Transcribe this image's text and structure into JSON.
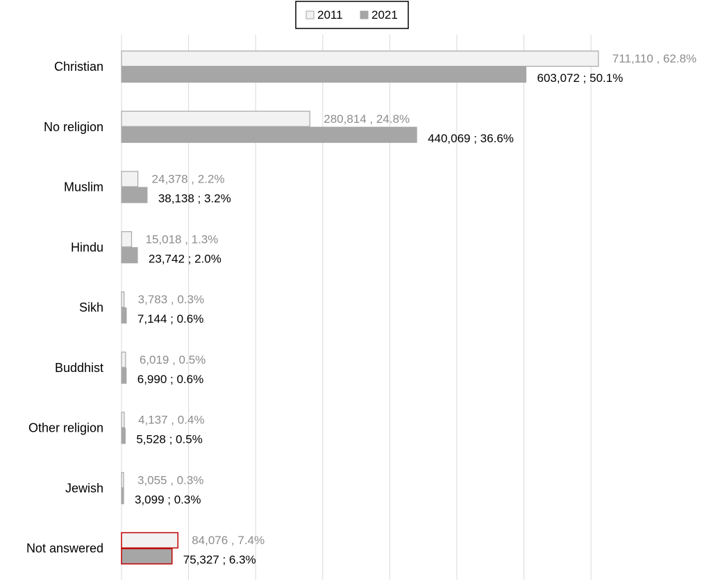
{
  "chart_data": {
    "type": "bar",
    "orientation": "horizontal",
    "categories": [
      "Christian",
      "No religion",
      "Muslim",
      "Hindu",
      "Sikh",
      "Buddhist",
      "Other religion",
      "Jewish",
      "Not answered"
    ],
    "series": [
      {
        "name": "2011",
        "values": [
          711110,
          280814,
          24378,
          15018,
          3783,
          6019,
          4137,
          3055,
          84076
        ],
        "labels": [
          "711,110 , 62.8%",
          "280,814 , 24.8%",
          "24,378 , 2.2%",
          "15,018 , 1.3%",
          "3,783 , 0.3%",
          "6,019 , 0.5%",
          "4,137 , 0.4%",
          "3,055 , 0.3%",
          "84,076 , 7.4%"
        ],
        "fill": "#f2f2f2",
        "stroke": "#a6a6a6",
        "label_color": "#8c8c8c"
      },
      {
        "name": "2021",
        "values": [
          603072,
          440069,
          38138,
          23742,
          7144,
          6990,
          5528,
          3099,
          75327
        ],
        "labels": [
          "603,072 ; 50.1%",
          "440,069 ; 36.6%",
          "38,138 ; 3.2%",
          "23,742 ; 2.0%",
          "7,144 ; 0.6%",
          "6,990 ; 0.6%",
          "5,528 ; 0.5%",
          "3,099 ; 0.3%",
          "75,327 ; 6.3%"
        ],
        "fill": "#a6a6a6",
        "stroke": "#a6a6a6",
        "label_color": "#000000"
      }
    ],
    "highlight": {
      "category": "Not answered",
      "stroke": "#c00000"
    },
    "xlim": [
      0,
      780000
    ],
    "x_grid_step": 100000,
    "grid": true,
    "legend_position": "top-center",
    "title": "",
    "xlabel": "",
    "ylabel": ""
  }
}
